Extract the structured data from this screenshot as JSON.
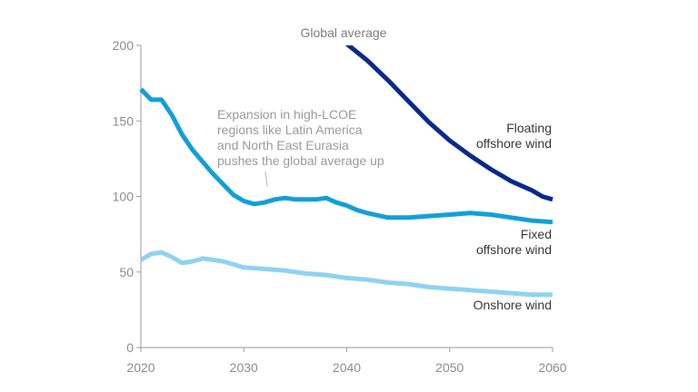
{
  "chart_data": {
    "type": "line",
    "title": "Global average",
    "xlabel": "",
    "ylabel": "",
    "xlim": [
      2020,
      2060
    ],
    "ylim": [
      0,
      200
    ],
    "xticks": [
      2020,
      2030,
      2040,
      2050,
      2060
    ],
    "yticks": [
      0,
      50,
      100,
      150,
      200
    ],
    "grid": false,
    "legend": "none",
    "series": [
      {
        "name": "Floating offshore wind",
        "label_lines": [
          "Floating",
          "offshore wind"
        ],
        "color": "#0a2a8a",
        "x": [
          2040,
          2042,
          2044,
          2046,
          2048,
          2050,
          2052,
          2054,
          2056,
          2058,
          2059,
          2060
        ],
        "y": [
          201,
          190,
          177,
          163,
          149,
          137,
          127,
          118,
          110,
          104,
          100,
          98
        ]
      },
      {
        "name": "Fixed offshore wind",
        "label_lines": [
          "Fixed",
          "offshore wind"
        ],
        "color": "#129fd9",
        "x": [
          2020,
          2021,
          2022,
          2023,
          2024,
          2025,
          2026,
          2027,
          2028,
          2029,
          2030,
          2031,
          2032,
          2033,
          2034,
          2035,
          2036,
          2037,
          2038,
          2039,
          2040,
          2041,
          2042,
          2044,
          2046,
          2048,
          2050,
          2052,
          2054,
          2056,
          2058,
          2060
        ],
        "y": [
          171,
          164,
          164,
          154,
          141,
          131,
          123,
          115,
          108,
          101,
          97,
          95,
          96,
          98,
          99,
          98,
          98,
          98,
          99,
          96,
          94,
          91,
          89,
          86,
          86,
          87,
          88,
          89,
          88,
          86,
          84,
          83
        ]
      },
      {
        "name": "Onshore wind",
        "label_lines": [
          "Onshore wind"
        ],
        "color": "#8fd2f2",
        "x": [
          2020,
          2021,
          2022,
          2023,
          2024,
          2025,
          2026,
          2027,
          2028,
          2029,
          2030,
          2032,
          2034,
          2036,
          2038,
          2040,
          2042,
          2044,
          2046,
          2048,
          2050,
          2052,
          2054,
          2056,
          2058,
          2060
        ],
        "y": [
          58,
          62,
          63,
          60,
          56,
          57,
          59,
          58,
          57,
          55,
          53,
          52,
          51,
          49,
          48,
          46,
          45,
          43,
          42,
          40,
          39,
          38,
          37,
          36,
          35,
          35
        ]
      }
    ],
    "annotations": [
      {
        "lines": [
          "Expansion in high-LCOE",
          "regions like Latin America",
          "and North East Eurasia",
          "pushes the global average up"
        ],
        "points_to": {
          "x": 2033,
          "y": 99
        }
      }
    ]
  }
}
